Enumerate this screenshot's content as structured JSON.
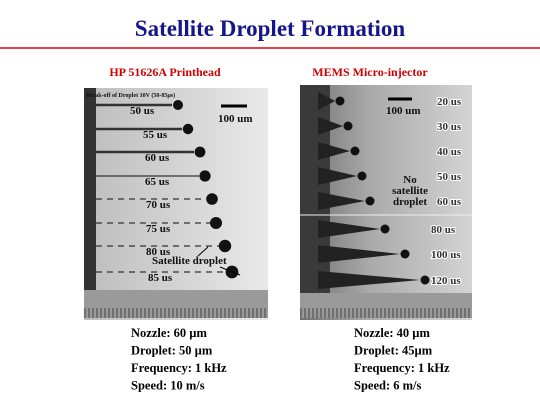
{
  "header": {
    "title": "Satellite Droplet Formation"
  },
  "left_panel": {
    "heading": "HP 51626A Printhead",
    "caption": "Break-off of Droplet 10V (50-85µs)",
    "scale": "100 um",
    "annotation": "Satellite droplet",
    "times": [
      "50 us",
      "55 us",
      "60 us",
      "65 us",
      "70 us",
      "75 us",
      "80 us",
      "85 us"
    ],
    "specs": [
      "Nozzle: 60 µm",
      "Droplet: 50 µm",
      "Frequency: 1 kHz",
      "Speed: 10 m/s"
    ]
  },
  "right_panel": {
    "heading": "MEMS Micro-injector",
    "scale": "100 um",
    "annotation": [
      "No",
      "satellite",
      "droplet"
    ],
    "times": [
      "20 us",
      "30 us",
      "40 us",
      "50 us",
      "60 us",
      "80 us",
      "100 us",
      "120 us"
    ],
    "specs": [
      "Nozzle: 40 µm",
      "Droplet: 45µm",
      "Frequency: 1 kHz",
      "Speed: 6 m/s"
    ]
  }
}
